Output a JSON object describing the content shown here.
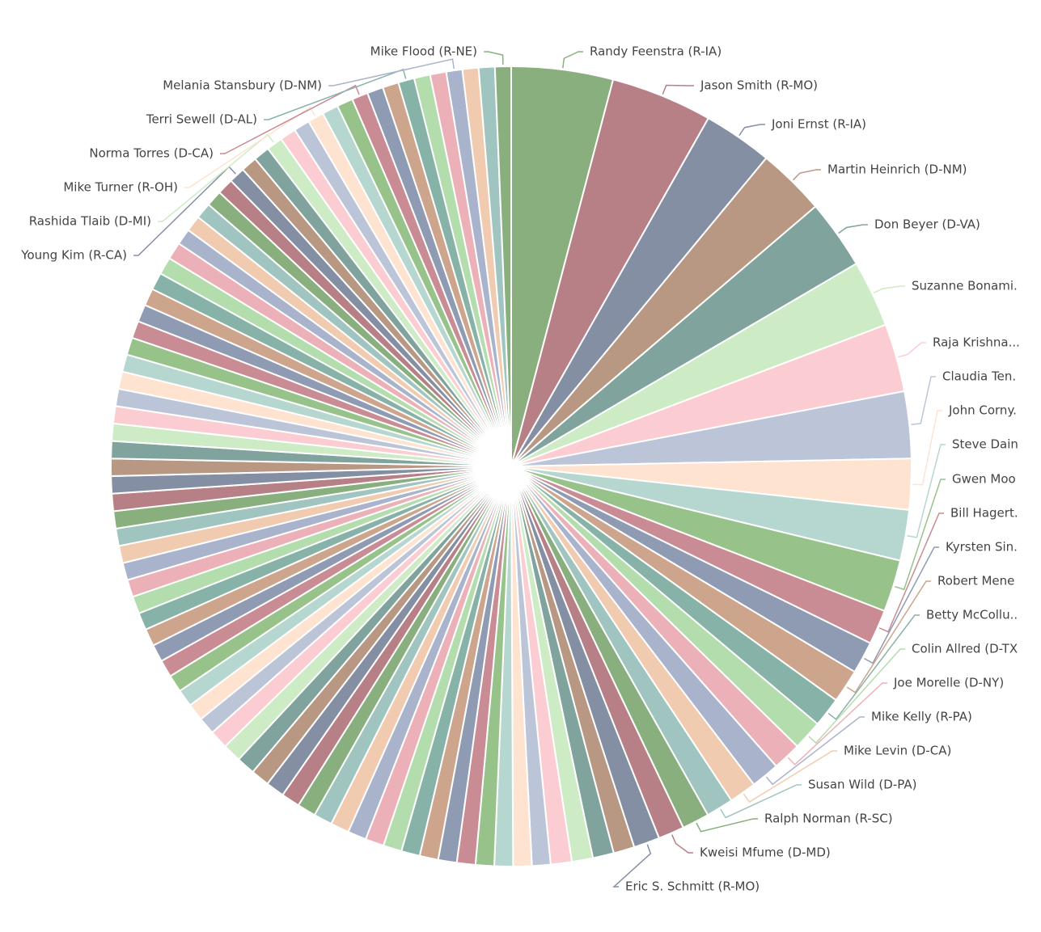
{
  "chart_data": {
    "type": "pie",
    "categories": [
      "Randy Feenstra (R-IA)",
      "Jason Smith (R-MO)",
      "Joni Ernst (R-IA)",
      "Martin Heinrich (D-NM)",
      "Don Beyer (D-VA)",
      "Suzanne Bonami.",
      "Raja Krishna...",
      "Claudia Ten.",
      "John Corny.",
      "Steve Dain",
      "Gwen Moo",
      "Bill Hagert.",
      "Kyrsten Sin.",
      "Robert Mene",
      "Betty McCollu..",
      "Colin Allred (D-TX",
      "Joe Morelle (D-NY)",
      "Mike Kelly (R-PA)",
      "Mike Levin (D-CA)",
      "Susan Wild (D-PA)",
      "Ralph Norman (R-SC)",
      "Kweisi Mfume (D-MD)",
      "Eric S. Schmitt (R-MO)",
      null,
      null,
      null,
      null,
      null,
      null,
      null,
      null,
      null,
      null,
      null,
      null,
      null,
      null,
      null,
      null,
      null,
      null,
      null,
      null,
      null,
      null,
      null,
      null,
      null,
      null,
      null,
      null,
      null,
      null,
      null,
      null,
      null,
      null,
      null,
      null,
      null,
      null,
      null,
      null,
      null,
      null,
      null,
      null,
      null,
      null,
      null,
      null,
      null,
      null,
      null,
      null,
      null,
      null,
      null,
      null,
      null,
      null,
      null,
      "Young Kim (R-CA)",
      null,
      null,
      "Rashida Tlaib (D-MI)",
      null,
      null,
      "Mike Turner (R-OH)",
      null,
      null,
      "Norma Torres (D-CA)",
      null,
      null,
      "Terri Sewell (D-AL)",
      null,
      null,
      "Melania Stansbury (D-NM)",
      null,
      null,
      "Mike Flood (R-NE)"
    ],
    "values": [
      4.1,
      4.1,
      2.8,
      2.75,
      2.8,
      2.7,
      2.75,
      2.7,
      2.05,
      2.05,
      2.1,
      1.4,
      1.3,
      1.35,
      1.2,
      1.2,
      1.15,
      1.15,
      1.1,
      1.1,
      1.1,
      1.05,
      1.05,
      0.85,
      0.85,
      0.85,
      0.85,
      0.75,
      0.75,
      0.75,
      0.75,
      0.75,
      0.75,
      0.75,
      0.75,
      0.75,
      0.75,
      0.75,
      0.75,
      0.75,
      0.75,
      0.75,
      0.75,
      0.75,
      0.75,
      0.75,
      0.75,
      0.7,
      0.7,
      0.7,
      0.7,
      0.7,
      0.7,
      0.7,
      0.7,
      0.7,
      0.7,
      0.7,
      0.7,
      0.7,
      0.7,
      0.7,
      0.7,
      0.7,
      0.7,
      0.7,
      0.7,
      0.7,
      0.7,
      0.7,
      0.7,
      0.7,
      0.7,
      0.7,
      0.7,
      0.7,
      0.7,
      0.65,
      0.65,
      0.65,
      0.65,
      0.65,
      0.65,
      0.65,
      0.65,
      0.65,
      0.65,
      0.65,
      0.65,
      0.65,
      0.65,
      0.65,
      0.65,
      0.65,
      0.65,
      0.65,
      0.65,
      0.65,
      0.65,
      0.65,
      0.65
    ],
    "colors": [
      "#8aaf7e",
      "#b77f86",
      "#848fa3",
      "#b89882",
      "#80a39d",
      "#cdebc5",
      "#fbcdd2",
      "#bcc5d8",
      "#fde3d0",
      "#b6d6d0",
      "#97c38a",
      "#c98b94",
      "#8f9bb3",
      "#cca58c",
      "#87b2a8",
      "#b3ddac",
      "#ecb1b8",
      "#a9b3cb",
      "#f1cbb0",
      "#a0c5c0"
    ]
  }
}
